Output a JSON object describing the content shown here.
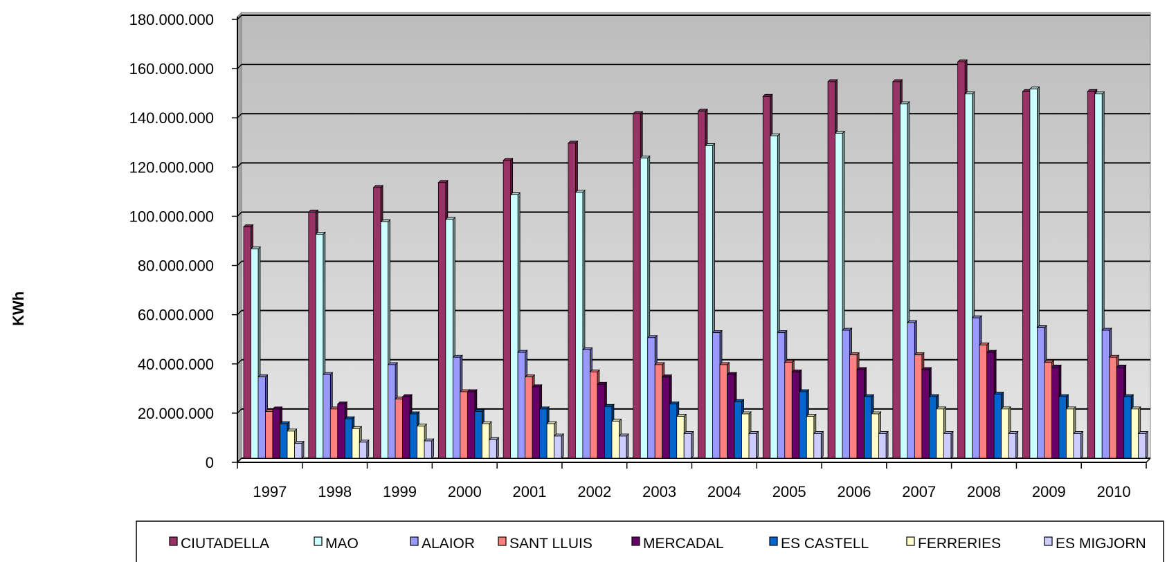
{
  "chart_data": {
    "type": "bar",
    "title": "",
    "xlabel": "",
    "ylabel": "KWh",
    "ylim": [
      0,
      180000000
    ],
    "yticks": [
      0,
      20000000,
      40000000,
      60000000,
      80000000,
      100000000,
      120000000,
      140000000,
      160000000,
      180000000
    ],
    "ytick_labels": [
      "0",
      "20.000.000",
      "40.000.000",
      "60.000.000",
      "80.000.000",
      "100.000.000",
      "120.000.000",
      "140.000.000",
      "160.000.000",
      "180.000.000"
    ],
    "grid": true,
    "legend_position": "bottom",
    "categories": [
      "1997",
      "1998",
      "1999",
      "2000",
      "2001",
      "2002",
      "2003",
      "2004",
      "2005",
      "2006",
      "2007",
      "2008",
      "2009",
      "2010"
    ],
    "series": [
      {
        "name": "CIUTADELLA",
        "color": "#993366",
        "values": [
          94000000,
          100000000,
          110000000,
          112000000,
          121000000,
          128000000,
          140000000,
          141000000,
          147000000,
          153000000,
          153000000,
          161000000,
          149000000,
          149000000
        ]
      },
      {
        "name": "MAO",
        "color": "#ccffff",
        "values": [
          85000000,
          91000000,
          96000000,
          97000000,
          107000000,
          108000000,
          122000000,
          127000000,
          131000000,
          132000000,
          144000000,
          148000000,
          150000000,
          148000000
        ]
      },
      {
        "name": "ALAIOR",
        "color": "#9999ff",
        "values": [
          33000000,
          34000000,
          38000000,
          41000000,
          43000000,
          44000000,
          49000000,
          51000000,
          51000000,
          52000000,
          55000000,
          57000000,
          53000000,
          52000000
        ]
      },
      {
        "name": "SANT LLUIS",
        "color": "#ff8080",
        "values": [
          19000000,
          20000000,
          24000000,
          27000000,
          33000000,
          35000000,
          38000000,
          38000000,
          39000000,
          42000000,
          42000000,
          46000000,
          39000000,
          41000000
        ]
      },
      {
        "name": "MERCADAL",
        "color": "#660066",
        "values": [
          20000000,
          22000000,
          25000000,
          27000000,
          29000000,
          30000000,
          33000000,
          34000000,
          35000000,
          36000000,
          36000000,
          43000000,
          37000000,
          37000000
        ]
      },
      {
        "name": "ES CASTELL",
        "color": "#0066cc",
        "values": [
          14000000,
          16000000,
          18000000,
          19000000,
          20000000,
          21000000,
          22000000,
          23000000,
          27000000,
          25000000,
          25000000,
          26000000,
          25000000,
          25000000
        ]
      },
      {
        "name": "FERRERIES",
        "color": "#ffffcc",
        "values": [
          11000000,
          12000000,
          13000000,
          14000000,
          14000000,
          15000000,
          17000000,
          18000000,
          17000000,
          18000000,
          20000000,
          20000000,
          20000000,
          20000000
        ]
      },
      {
        "name": "ES MIGJORN",
        "color": "#ccccff",
        "values": [
          6000000,
          6500000,
          7000000,
          7500000,
          9000000,
          9000000,
          10000000,
          10000000,
          10000000,
          10000000,
          10000000,
          10000000,
          10000000,
          10000000
        ]
      }
    ]
  }
}
